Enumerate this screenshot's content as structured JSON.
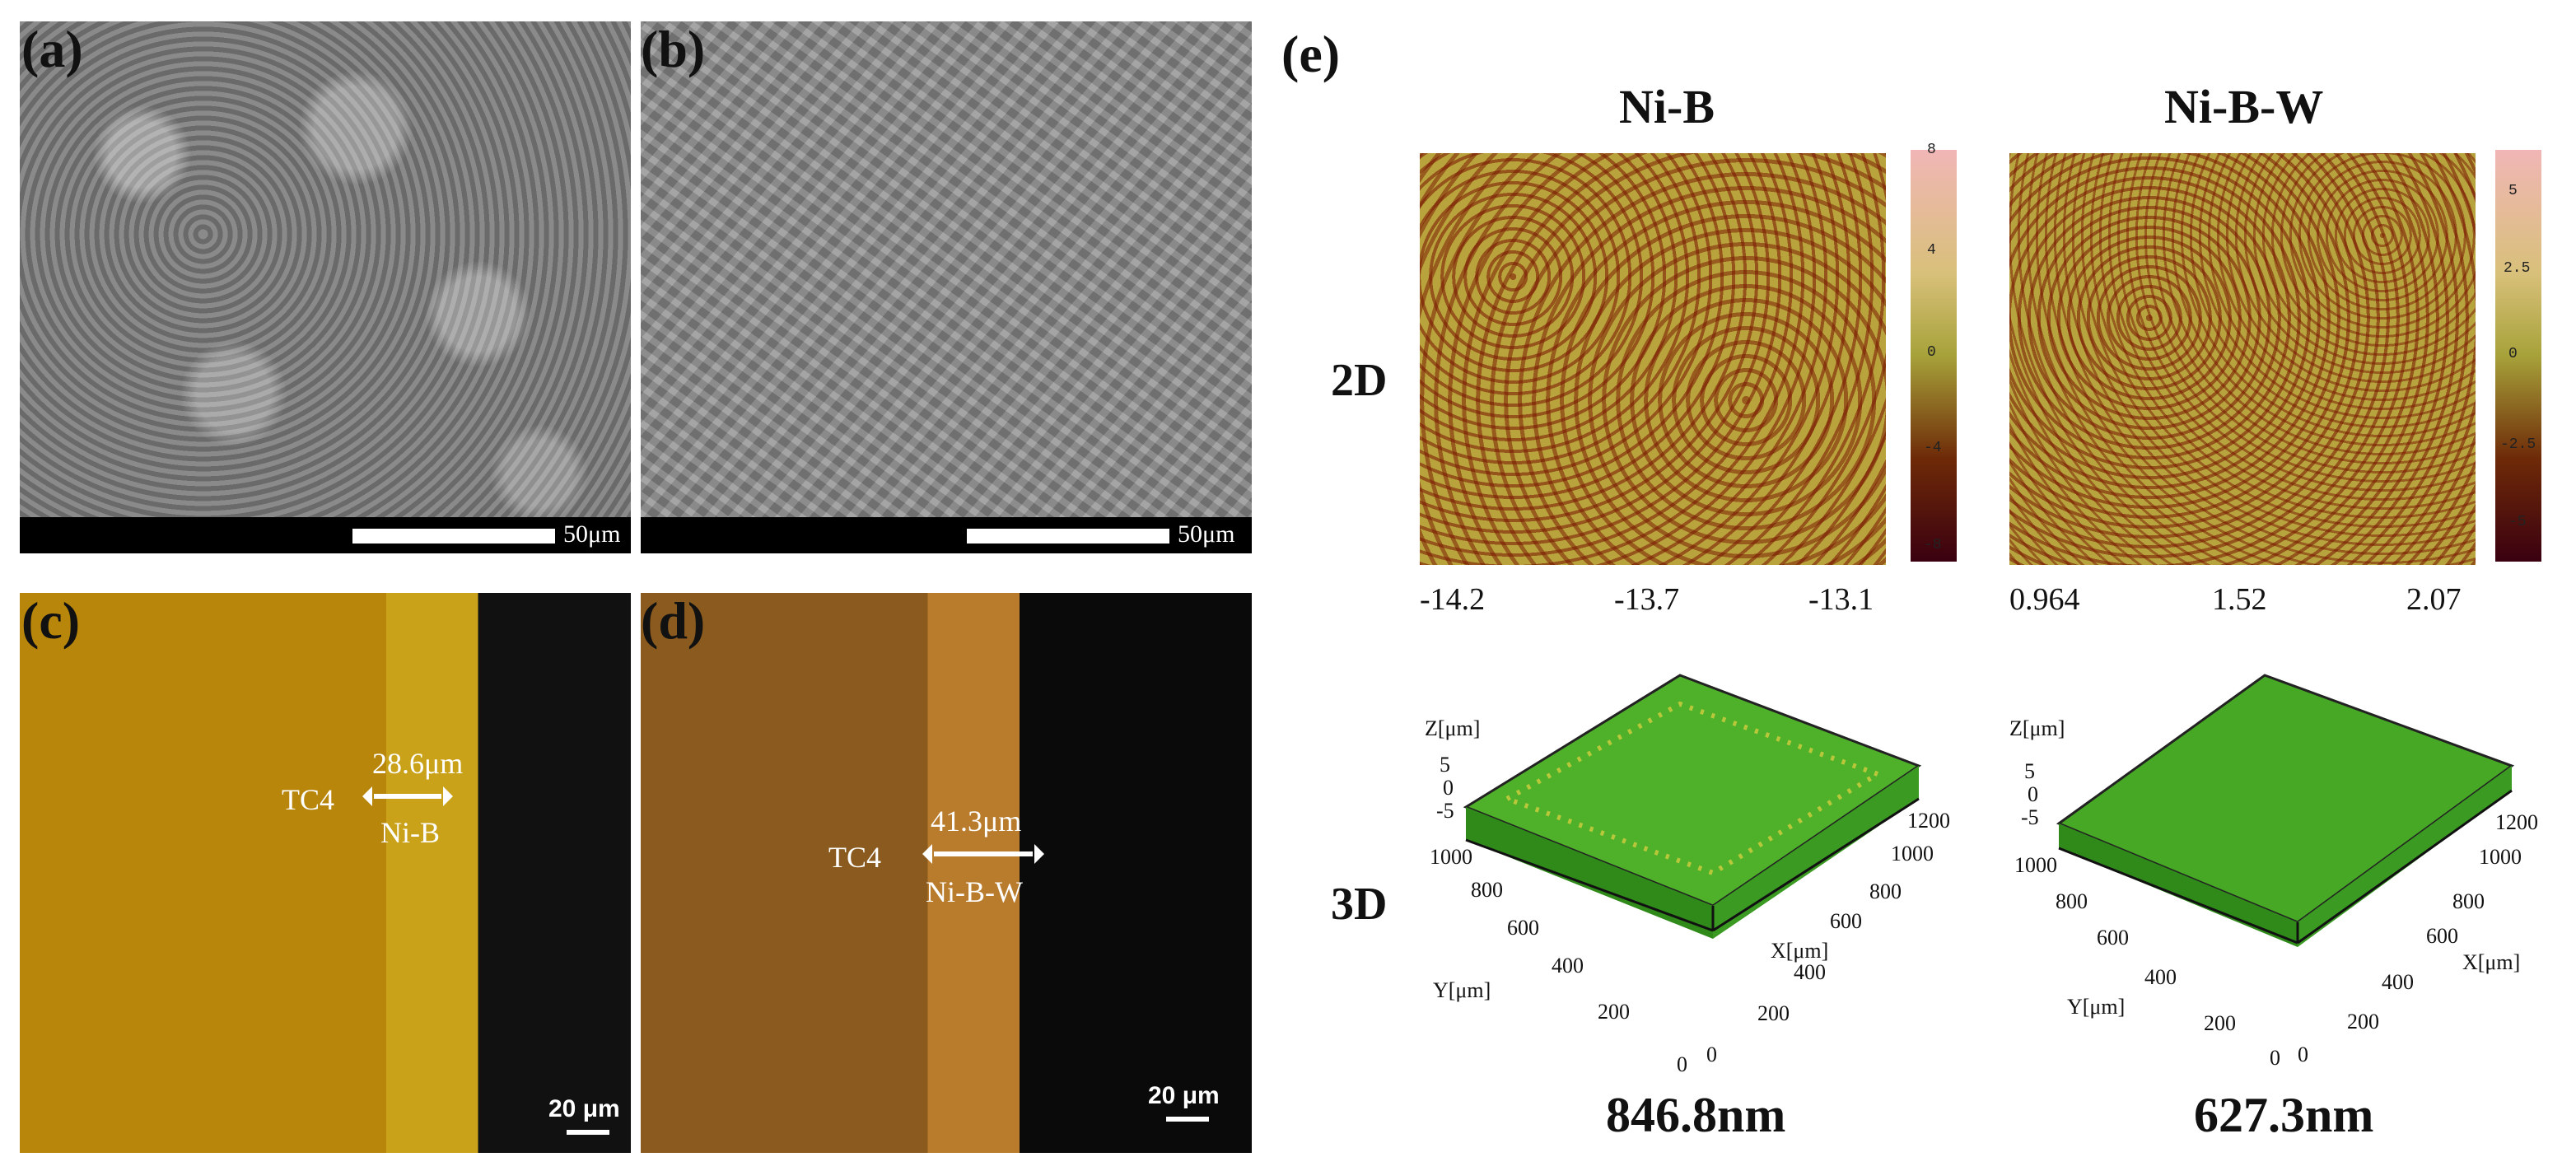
{
  "panels": {
    "a": {
      "label": "(a)",
      "scale": "50μm"
    },
    "b": {
      "label": "(b)",
      "scale": "50μm"
    },
    "c": {
      "label": "(c)",
      "substrate": "TC4",
      "thickness": "28.6μm",
      "coating": "Ni-B",
      "scale": "20 μm"
    },
    "d": {
      "label": "(d)",
      "substrate": "TC4",
      "thickness": "41.3μm",
      "coating": "Ni-B-W",
      "scale": "20 μm"
    },
    "e": {
      "label": "(e)",
      "col1_title": "Ni-B",
      "col2_title": "Ni-B-W",
      "row1_label": "2D",
      "row2_label": "3D",
      "map1_xticks": [
        "-14.2",
        "-13.7",
        "-13.1"
      ],
      "map2_xticks": [
        "0.964",
        "1.52",
        "2.07"
      ],
      "cbar1_ticks": [
        "8",
        "4",
        "0",
        "-4",
        "-8"
      ],
      "cbar2_ticks": [
        "5",
        "2.5",
        "0",
        "-2.5",
        "-5"
      ],
      "surf_z_label": "Z[μm]",
      "surf_y_label": "Y[μm]",
      "surf_x_label": "X[μm]",
      "surf_z_ticks": [
        "5",
        "0",
        "-5"
      ],
      "surf_y_ticks": [
        "1000",
        "800",
        "600",
        "400",
        "200",
        "0"
      ],
      "surf_x_ticks": [
        "0",
        "200",
        "400",
        "600",
        "800",
        "1000",
        "1200"
      ],
      "roughness1": "846.8nm",
      "roughness2": "627.3nm"
    }
  },
  "colors": {
    "surface_green": "#3fae1f",
    "surface_yellow": "#b8c83a"
  }
}
